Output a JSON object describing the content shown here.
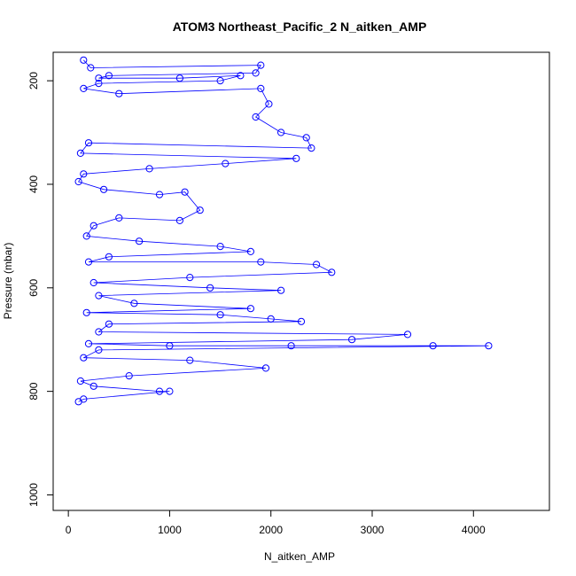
{
  "chart_data": {
    "type": "line",
    "title": "ATOM3 Northeast_Pacific_2 N_aitken_AMP",
    "xlabel": "N_aitken_AMP",
    "ylabel": "Pressure (mbar)",
    "xlim": [
      -150,
      4750
    ],
    "ylim": [
      1030,
      145
    ],
    "y_reversed": true,
    "x_ticks": [
      0,
      1000,
      2000,
      3000,
      4000
    ],
    "y_ticks": [
      200,
      400,
      600,
      800,
      1000
    ],
    "grid": false,
    "legend": "none",
    "marker": "open-circle",
    "series_color": "#0000ff",
    "series": [
      {
        "points": [
          [
            150,
            160
          ],
          [
            220,
            175
          ],
          [
            1900,
            170
          ],
          [
            1850,
            185
          ],
          [
            400,
            190
          ],
          [
            300,
            195
          ],
          [
            1100,
            195
          ],
          [
            1700,
            190
          ],
          [
            1500,
            200
          ],
          [
            300,
            205
          ],
          [
            150,
            215
          ],
          [
            500,
            225
          ],
          [
            1900,
            215
          ],
          [
            1980,
            245
          ],
          [
            1850,
            270
          ],
          [
            2100,
            300
          ],
          [
            2350,
            310
          ],
          [
            2400,
            330
          ],
          [
            200,
            320
          ],
          [
            120,
            340
          ],
          [
            2250,
            350
          ],
          [
            1550,
            360
          ],
          [
            800,
            370
          ],
          [
            150,
            380
          ],
          [
            100,
            395
          ],
          [
            350,
            410
          ],
          [
            900,
            420
          ],
          [
            1150,
            415
          ],
          [
            1300,
            450
          ],
          [
            1100,
            470
          ],
          [
            500,
            465
          ],
          [
            250,
            480
          ],
          [
            180,
            500
          ],
          [
            700,
            510
          ],
          [
            1500,
            520
          ],
          [
            1800,
            530
          ],
          [
            400,
            540
          ],
          [
            200,
            550
          ],
          [
            1900,
            550
          ],
          [
            2450,
            555
          ],
          [
            2600,
            570
          ],
          [
            1200,
            580
          ],
          [
            250,
            590
          ],
          [
            1400,
            600
          ],
          [
            2100,
            605
          ],
          [
            300,
            615
          ],
          [
            650,
            630
          ],
          [
            1800,
            640
          ],
          [
            180,
            648
          ],
          [
            1500,
            652
          ],
          [
            2000,
            660
          ],
          [
            2300,
            665
          ],
          [
            400,
            670
          ],
          [
            300,
            685
          ],
          [
            3350,
            690
          ],
          [
            2800,
            700
          ],
          [
            200,
            708
          ],
          [
            1000,
            712
          ],
          [
            2200,
            712
          ],
          [
            3600,
            712
          ],
          [
            4150,
            712
          ],
          [
            300,
            720
          ],
          [
            150,
            735
          ],
          [
            1200,
            740
          ],
          [
            1950,
            755
          ],
          [
            600,
            770
          ],
          [
            120,
            780
          ],
          [
            250,
            790
          ],
          [
            900,
            800
          ],
          [
            1000,
            800
          ],
          [
            150,
            815
          ],
          [
            100,
            820
          ]
        ]
      }
    ]
  }
}
